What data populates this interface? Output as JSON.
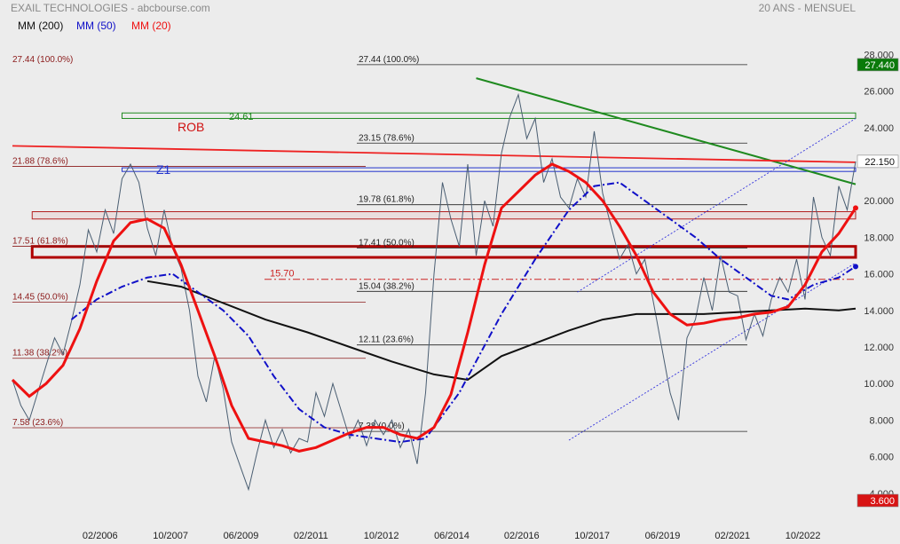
{
  "header": {
    "title": "EXAIL TECHNOLOGIES - abcbourse.com",
    "period": "20 ANS - MENSUEL"
  },
  "colors": {
    "background": "#ececec",
    "price": "#4a5e72",
    "ma200": "#111111",
    "ma50": "#1010c8",
    "ma20": "#ee1111",
    "fib_left": "#8b1a1a",
    "fib_right": "#222222",
    "trend_green": "#1f8a1f",
    "rob": "#ee2222",
    "channel": "#3333dd",
    "last_badge": "#ffffff",
    "high_badge": "#0a7a0a",
    "low_badge": "#d81414"
  },
  "chart_data": {
    "type": "line",
    "title": "EXAIL TECHNOLOGIES - abcbourse.com",
    "xlabel": "",
    "ylabel": "",
    "ylim": [
      3.6,
      28.6
    ],
    "xlim": [
      2004.0,
      2024.0
    ],
    "y_ticks": [
      "4.000",
      "6.000",
      "8.000",
      "10.000",
      "12.000",
      "14.000",
      "16.000",
      "18.000",
      "20.000",
      "22.000",
      "24.000",
      "26.000",
      "28.000"
    ],
    "x_tick_labels": [
      {
        "t": 2006.08,
        "label": "02/2006"
      },
      {
        "t": 2007.75,
        "label": "10/2007"
      },
      {
        "t": 2009.42,
        "label": "06/2009"
      },
      {
        "t": 2011.08,
        "label": "02/2011"
      },
      {
        "t": 2012.75,
        "label": "10/2012"
      },
      {
        "t": 2014.42,
        "label": "06/2014"
      },
      {
        "t": 2016.08,
        "label": "02/2016"
      },
      {
        "t": 2017.75,
        "label": "10/2017"
      },
      {
        "t": 2019.42,
        "label": "06/2019"
      },
      {
        "t": 2021.08,
        "label": "02/2021"
      },
      {
        "t": 2022.75,
        "label": "10/2022"
      }
    ],
    "legend": [
      {
        "name": "MM (200)",
        "color": "#111111"
      },
      {
        "name": "MM (50)",
        "color": "#1010c8"
      },
      {
        "name": "MM (20)",
        "color": "#ee1111"
      }
    ],
    "badges": {
      "last": "22.150",
      "high": "27.440",
      "low": "3.600"
    },
    "price": [
      [
        2004.0,
        10.2
      ],
      [
        2004.2,
        8.8
      ],
      [
        2004.4,
        8.0
      ],
      [
        2004.6,
        9.5
      ],
      [
        2004.8,
        11.0
      ],
      [
        2005.0,
        12.5
      ],
      [
        2005.2,
        11.6
      ],
      [
        2005.4,
        13.4
      ],
      [
        2005.6,
        15.4
      ],
      [
        2005.8,
        18.4
      ],
      [
        2006.0,
        17.2
      ],
      [
        2006.2,
        19.5
      ],
      [
        2006.4,
        18.2
      ],
      [
        2006.6,
        21.2
      ],
      [
        2006.8,
        22.0
      ],
      [
        2007.0,
        21.0
      ],
      [
        2007.2,
        18.5
      ],
      [
        2007.4,
        17.0
      ],
      [
        2007.6,
        19.5
      ],
      [
        2007.8,
        17.4
      ],
      [
        2008.0,
        16.3
      ],
      [
        2008.2,
        14.0
      ],
      [
        2008.4,
        10.4
      ],
      [
        2008.6,
        9.0
      ],
      [
        2008.8,
        11.5
      ],
      [
        2009.0,
        9.7
      ],
      [
        2009.2,
        6.8
      ],
      [
        2009.4,
        5.5
      ],
      [
        2009.6,
        4.2
      ],
      [
        2009.8,
        6.2
      ],
      [
        2010.0,
        8.0
      ],
      [
        2010.2,
        6.5
      ],
      [
        2010.4,
        7.5
      ],
      [
        2010.6,
        6.2
      ],
      [
        2010.8,
        7.0
      ],
      [
        2011.0,
        6.8
      ],
      [
        2011.2,
        9.5
      ],
      [
        2011.4,
        8.2
      ],
      [
        2011.6,
        10.0
      ],
      [
        2011.8,
        8.5
      ],
      [
        2012.0,
        7.0
      ],
      [
        2012.2,
        8.0
      ],
      [
        2012.4,
        6.6
      ],
      [
        2012.6,
        8.0
      ],
      [
        2012.8,
        7.2
      ],
      [
        2013.0,
        8.0
      ],
      [
        2013.2,
        6.5
      ],
      [
        2013.4,
        7.5
      ],
      [
        2013.6,
        5.6
      ],
      [
        2013.8,
        9.5
      ],
      [
        2014.0,
        16.0
      ],
      [
        2014.2,
        21.0
      ],
      [
        2014.4,
        19.0
      ],
      [
        2014.6,
        17.5
      ],
      [
        2014.8,
        22.0
      ],
      [
        2015.0,
        17.0
      ],
      [
        2015.2,
        20.0
      ],
      [
        2015.4,
        18.6
      ],
      [
        2015.6,
        22.6
      ],
      [
        2015.8,
        24.6
      ],
      [
        2016.0,
        25.8
      ],
      [
        2016.2,
        23.4
      ],
      [
        2016.4,
        24.5
      ],
      [
        2016.6,
        21.0
      ],
      [
        2016.8,
        22.3
      ],
      [
        2017.0,
        20.2
      ],
      [
        2017.2,
        19.6
      ],
      [
        2017.4,
        21.2
      ],
      [
        2017.6,
        20.2
      ],
      [
        2017.8,
        23.8
      ],
      [
        2018.0,
        20.4
      ],
      [
        2018.2,
        18.6
      ],
      [
        2018.4,
        16.8
      ],
      [
        2018.6,
        17.6
      ],
      [
        2018.8,
        16.0
      ],
      [
        2019.0,
        16.8
      ],
      [
        2019.2,
        14.5
      ],
      [
        2019.4,
        12.0
      ],
      [
        2019.6,
        9.5
      ],
      [
        2019.8,
        8.0
      ],
      [
        2020.0,
        12.5
      ],
      [
        2020.2,
        13.5
      ],
      [
        2020.4,
        15.8
      ],
      [
        2020.6,
        14.0
      ],
      [
        2020.8,
        17.0
      ],
      [
        2021.0,
        15.0
      ],
      [
        2021.2,
        14.8
      ],
      [
        2021.4,
        12.4
      ],
      [
        2021.6,
        13.8
      ],
      [
        2021.8,
        12.6
      ],
      [
        2022.0,
        14.6
      ],
      [
        2022.2,
        15.8
      ],
      [
        2022.4,
        15.0
      ],
      [
        2022.6,
        16.8
      ],
      [
        2022.8,
        14.6
      ],
      [
        2023.0,
        20.2
      ],
      [
        2023.2,
        18.0
      ],
      [
        2023.4,
        17.0
      ],
      [
        2023.6,
        20.8
      ],
      [
        2023.8,
        19.5
      ],
      [
        2024.0,
        22.15
      ]
    ],
    "series": [
      {
        "name": "MM (200)",
        "values": [
          [
            2007.2,
            15.6
          ],
          [
            2008.0,
            15.3
          ],
          [
            2009.0,
            14.4
          ],
          [
            2010.0,
            13.5
          ],
          [
            2011.0,
            12.8
          ],
          [
            2012.0,
            12.0
          ],
          [
            2013.0,
            11.2
          ],
          [
            2014.0,
            10.5
          ],
          [
            2014.8,
            10.2
          ],
          [
            2015.6,
            11.5
          ],
          [
            2016.4,
            12.2
          ],
          [
            2017.2,
            12.9
          ],
          [
            2018.0,
            13.5
          ],
          [
            2018.8,
            13.8
          ],
          [
            2019.6,
            13.8
          ],
          [
            2020.4,
            13.8
          ],
          [
            2021.2,
            13.9
          ],
          [
            2022.0,
            14.0
          ],
          [
            2022.8,
            14.1
          ],
          [
            2023.6,
            14.0
          ],
          [
            2024.0,
            14.1
          ]
        ]
      },
      {
        "name": "MM (50)",
        "values": [
          [
            2005.4,
            13.5
          ],
          [
            2006.0,
            14.6
          ],
          [
            2006.6,
            15.3
          ],
          [
            2007.2,
            15.8
          ],
          [
            2007.8,
            16.0
          ],
          [
            2008.4,
            15.0
          ],
          [
            2009.0,
            14.0
          ],
          [
            2009.6,
            12.6
          ],
          [
            2010.2,
            10.4
          ],
          [
            2010.8,
            8.6
          ],
          [
            2011.4,
            7.6
          ],
          [
            2012.0,
            7.2
          ],
          [
            2012.6,
            7.0
          ],
          [
            2013.2,
            6.8
          ],
          [
            2013.8,
            7.0
          ],
          [
            2014.6,
            9.5
          ],
          [
            2015.6,
            13.8
          ],
          [
            2016.4,
            16.8
          ],
          [
            2017.2,
            19.5
          ],
          [
            2017.8,
            20.8
          ],
          [
            2018.4,
            21.0
          ],
          [
            2019.0,
            20.0
          ],
          [
            2019.6,
            19.0
          ],
          [
            2020.2,
            18.0
          ],
          [
            2020.8,
            16.8
          ],
          [
            2021.4,
            15.8
          ],
          [
            2022.0,
            14.8
          ],
          [
            2022.4,
            14.6
          ],
          [
            2023.0,
            15.4
          ],
          [
            2023.6,
            15.8
          ],
          [
            2024.0,
            16.4
          ]
        ]
      },
      {
        "name": "MM (20)",
        "values": [
          [
            2004.0,
            10.2
          ],
          [
            2004.4,
            9.3
          ],
          [
            2004.8,
            10.0
          ],
          [
            2005.2,
            11.0
          ],
          [
            2005.6,
            13.0
          ],
          [
            2006.0,
            15.6
          ],
          [
            2006.4,
            17.8
          ],
          [
            2006.8,
            18.8
          ],
          [
            2007.2,
            19.0
          ],
          [
            2007.6,
            18.5
          ],
          [
            2008.0,
            16.5
          ],
          [
            2008.4,
            14.0
          ],
          [
            2008.8,
            11.5
          ],
          [
            2009.2,
            8.8
          ],
          [
            2009.6,
            7.0
          ],
          [
            2010.0,
            6.8
          ],
          [
            2010.4,
            6.6
          ],
          [
            2010.8,
            6.3
          ],
          [
            2011.2,
            6.5
          ],
          [
            2011.6,
            6.9
          ],
          [
            2012.0,
            7.3
          ],
          [
            2012.4,
            7.6
          ],
          [
            2012.8,
            7.6
          ],
          [
            2013.2,
            7.2
          ],
          [
            2013.6,
            7.0
          ],
          [
            2014.0,
            7.6
          ],
          [
            2014.4,
            9.4
          ],
          [
            2014.8,
            12.8
          ],
          [
            2015.2,
            16.5
          ],
          [
            2015.6,
            19.6
          ],
          [
            2016.0,
            20.5
          ],
          [
            2016.4,
            21.4
          ],
          [
            2016.8,
            22.0
          ],
          [
            2017.2,
            21.6
          ],
          [
            2017.6,
            21.0
          ],
          [
            2018.0,
            20.0
          ],
          [
            2018.4,
            18.6
          ],
          [
            2018.8,
            17.0
          ],
          [
            2019.2,
            15.0
          ],
          [
            2019.6,
            13.8
          ],
          [
            2020.0,
            13.2
          ],
          [
            2020.4,
            13.3
          ],
          [
            2020.8,
            13.5
          ],
          [
            2021.2,
            13.6
          ],
          [
            2021.6,
            13.8
          ],
          [
            2022.0,
            13.9
          ],
          [
            2022.4,
            14.2
          ],
          [
            2022.8,
            15.4
          ],
          [
            2023.2,
            17.2
          ],
          [
            2023.6,
            18.2
          ],
          [
            2024.0,
            19.6
          ]
        ]
      }
    ],
    "fib_left": [
      {
        "label": "27.44  (100.0%)",
        "value": 27.44
      },
      {
        "label": "21.88  (78.6%)",
        "value": 21.88
      },
      {
        "label": "17.51  (61.8%)",
        "value": 17.51
      },
      {
        "label": "14.45  (50.0%)",
        "value": 14.45
      },
      {
        "label": "11.38  (38.2%)",
        "value": 11.38
      },
      {
        "label": "7.58  (23.6%)",
        "value": 7.58
      }
    ],
    "fib_right": [
      {
        "label": "27.44  (100.0%)",
        "value": 27.44
      },
      {
        "label": "23.15  (78.6%)",
        "value": 23.15
      },
      {
        "label": "19.78  (61.8%)",
        "value": 19.78
      },
      {
        "label": "17.41  (50.0%)",
        "value": 17.41
      },
      {
        "label": "15.04  (38.2%)",
        "value": 15.04
      },
      {
        "label": "12.11  (23.6%)",
        "value": 12.11
      },
      {
        "label": "7.38  (0.0%)",
        "value": 7.38
      }
    ],
    "annotations": [
      {
        "label": "24.61",
        "value": 24.61
      },
      {
        "label": "15.70",
        "value": 15.7
      },
      {
        "label": "ROB"
      },
      {
        "label": "Z1"
      }
    ],
    "zones": [
      {
        "kind": "green",
        "from": 24.5,
        "to": 24.8,
        "t0": 2006.6,
        "t1": 2024.0
      },
      {
        "kind": "blue",
        "from": 21.6,
        "to": 21.8,
        "t0": 2006.6,
        "t1": 2024.0
      },
      {
        "kind": "pink",
        "from": 19.0,
        "to": 19.4,
        "t0": 2004.3,
        "t1": 2024.0
      },
      {
        "kind": "red",
        "from": 16.9,
        "to": 17.5,
        "t0": 2004.3,
        "t1": 2024.0
      }
    ],
    "trendlines": [
      {
        "kind": "green",
        "t0": 2015.0,
        "v0": 26.7,
        "t1": 2024.0,
        "v1": 20.9
      },
      {
        "kind": "rob",
        "t0": 2004.0,
        "v0": 23.0,
        "t1": 2024.0,
        "v1": 22.1
      },
      {
        "kind": "channel",
        "t0": 2017.4,
        "v0": 15.0,
        "t1": 2024.0,
        "v1": 24.5
      },
      {
        "kind": "channel",
        "t0": 2017.2,
        "v0": 6.9,
        "t1": 2024.0,
        "v1": 16.6
      }
    ]
  }
}
